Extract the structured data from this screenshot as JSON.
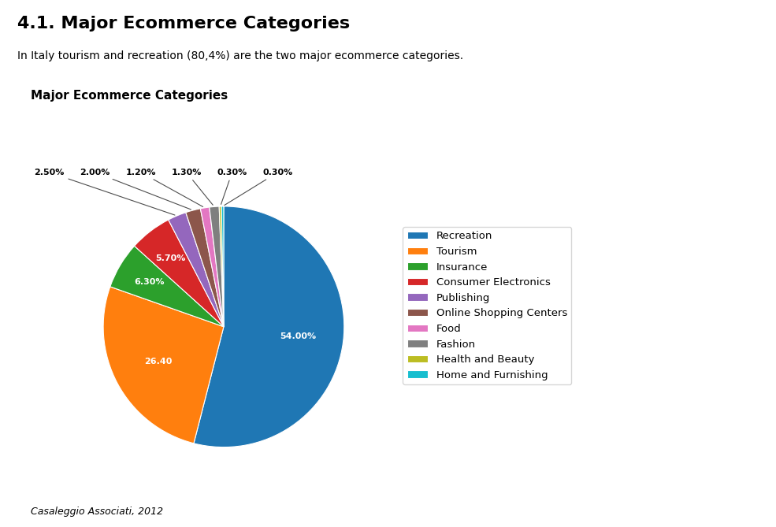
{
  "chart_data": {
    "type": "pie",
    "title": "4.1. Major Ecommerce Categories",
    "subtitle": "In Italy tourism and recreation (80,4%) are the two major ecommerce categories.",
    "annotations": [
      "Major Ecommerce Categories",
      "Casaleggio Associati, 2012"
    ],
    "categories": [
      "Recreation",
      "Tourism",
      "Insurance",
      "Consumer Electronics",
      "Publishing",
      "Online Shopping Centers",
      "Food",
      "Fashion",
      "Health and Beauty",
      "Home and Furnishing"
    ],
    "values": [
      54.0,
      26.4,
      6.3,
      5.7,
      2.5,
      2.0,
      1.2,
      1.3,
      0.3,
      0.3
    ],
    "value_labels": [
      "54.00%",
      "26.40",
      "6.30%",
      "5.70%",
      "2.50%",
      "2.00%",
      "1.20%",
      "1.30%",
      "0.30%",
      "0.30%"
    ],
    "data_labels": true,
    "legend": "center left"
  }
}
